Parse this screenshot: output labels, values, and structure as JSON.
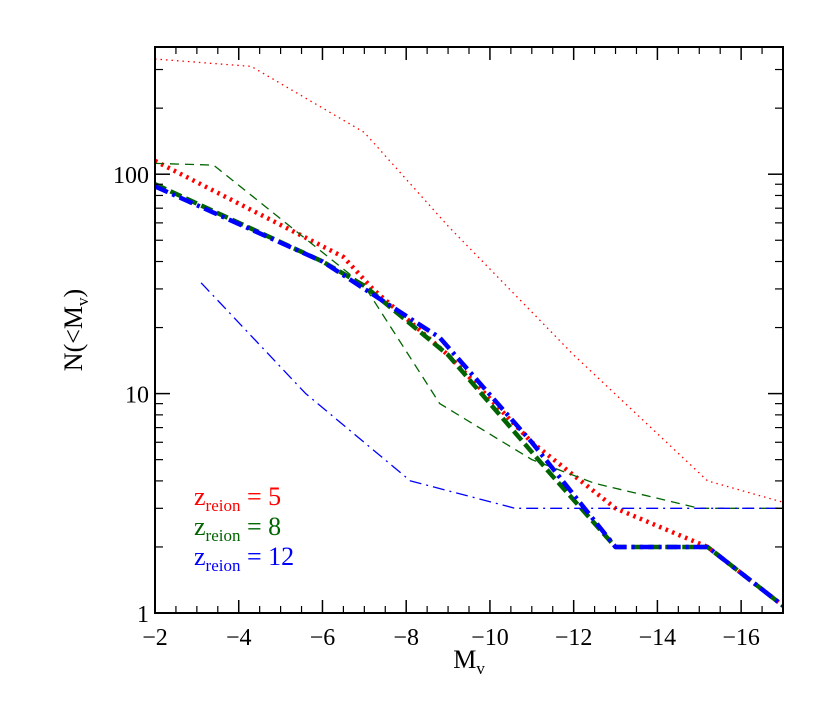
{
  "chart_data": {
    "type": "line",
    "xlabel": "M",
    "xlabel_sub": "v",
    "ylabel": "N(<M",
    "ylabel_sub": "v",
    "ylabel_close": ")",
    "xlim": [
      -2,
      -17
    ],
    "ylim": [
      1,
      380
    ],
    "yscale": "log",
    "x_ticks": [
      -2,
      -4,
      -6,
      -8,
      -10,
      -12,
      -14,
      -16
    ],
    "x_tick_labels": [
      "−2",
      "−4",
      "−6",
      "−8",
      "−10",
      "−12",
      "−14",
      "−16"
    ],
    "y_ticks": [
      1,
      10,
      100
    ],
    "y_tick_labels": [
      "1",
      "10",
      "100"
    ],
    "legend_position": "bottom-left",
    "series": [
      {
        "name_main": "z",
        "name_sub": "reion",
        "name_rest": " = 5",
        "color": "#ff0000",
        "style": "dotted",
        "weight": "thin",
        "x": [
          -2,
          -4.3,
          -7.0,
          -9.0,
          -12.0,
          -15.2,
          -17
        ],
        "y": [
          335,
          310,
          155,
          58,
          15,
          4,
          3.2
        ]
      },
      {
        "name_main": "z",
        "name_sub": "reion",
        "name_rest": " = 5",
        "color": "#ff0000",
        "style": "dotted",
        "weight": "thick",
        "x": [
          -2,
          -6.5,
          -7.2,
          -9.0,
          -11.0,
          -13.0,
          -15.2,
          -17
        ],
        "y": [
          115,
          42,
          30,
          15,
          6,
          3,
          2,
          1.08
        ]
      },
      {
        "name_main": "z",
        "name_sub": "reion",
        "name_rest": " = 8",
        "color": "#006400",
        "style": "dashed",
        "weight": "thin",
        "x": [
          -2,
          -3.4,
          -7.0,
          -8.8,
          -11.0,
          -12.5,
          -15.0,
          -17
        ],
        "y": [
          112,
          110,
          31,
          9,
          5,
          3.9,
          3,
          3
        ]
      },
      {
        "name_main": "z",
        "name_sub": "reion",
        "name_rest": " = 8",
        "color": "#006400",
        "style": "dashed",
        "weight": "thick",
        "x": [
          -2,
          -6.0,
          -7.0,
          -9.0,
          -11.5,
          -13.0,
          -15.2,
          -17
        ],
        "y": [
          90,
          40,
          31,
          15,
          4.2,
          2,
          2,
          1.08
        ]
      },
      {
        "name_main": "z",
        "name_sub": "reion",
        "name_rest": " = 12",
        "color": "#0000ff",
        "style": "dashdot",
        "weight": "thin",
        "x": [
          -3.1,
          -5.6,
          -8.1,
          -10.6,
          -17
        ],
        "y": [
          32,
          10,
          4,
          3,
          3
        ]
      },
      {
        "name_main": "z",
        "name_sub": "reion",
        "name_rest": " = 12",
        "color": "#0000ff",
        "style": "dashdot",
        "weight": "thick",
        "x": [
          -2,
          -6.0,
          -7.0,
          -8.8,
          -11.0,
          -13.0,
          -15.2,
          -17
        ],
        "y": [
          88,
          40,
          30,
          18,
          6,
          2,
          2,
          1.08
        ]
      }
    ],
    "legend": [
      {
        "main": "z",
        "sub": "reion",
        "rest": " = 5",
        "color": "#ff0000"
      },
      {
        "main": "z",
        "sub": "reion",
        "rest": " = 8",
        "color": "#006400"
      },
      {
        "main": "z",
        "sub": "reion",
        "rest": " = 12",
        "color": "#0000ff"
      }
    ]
  }
}
